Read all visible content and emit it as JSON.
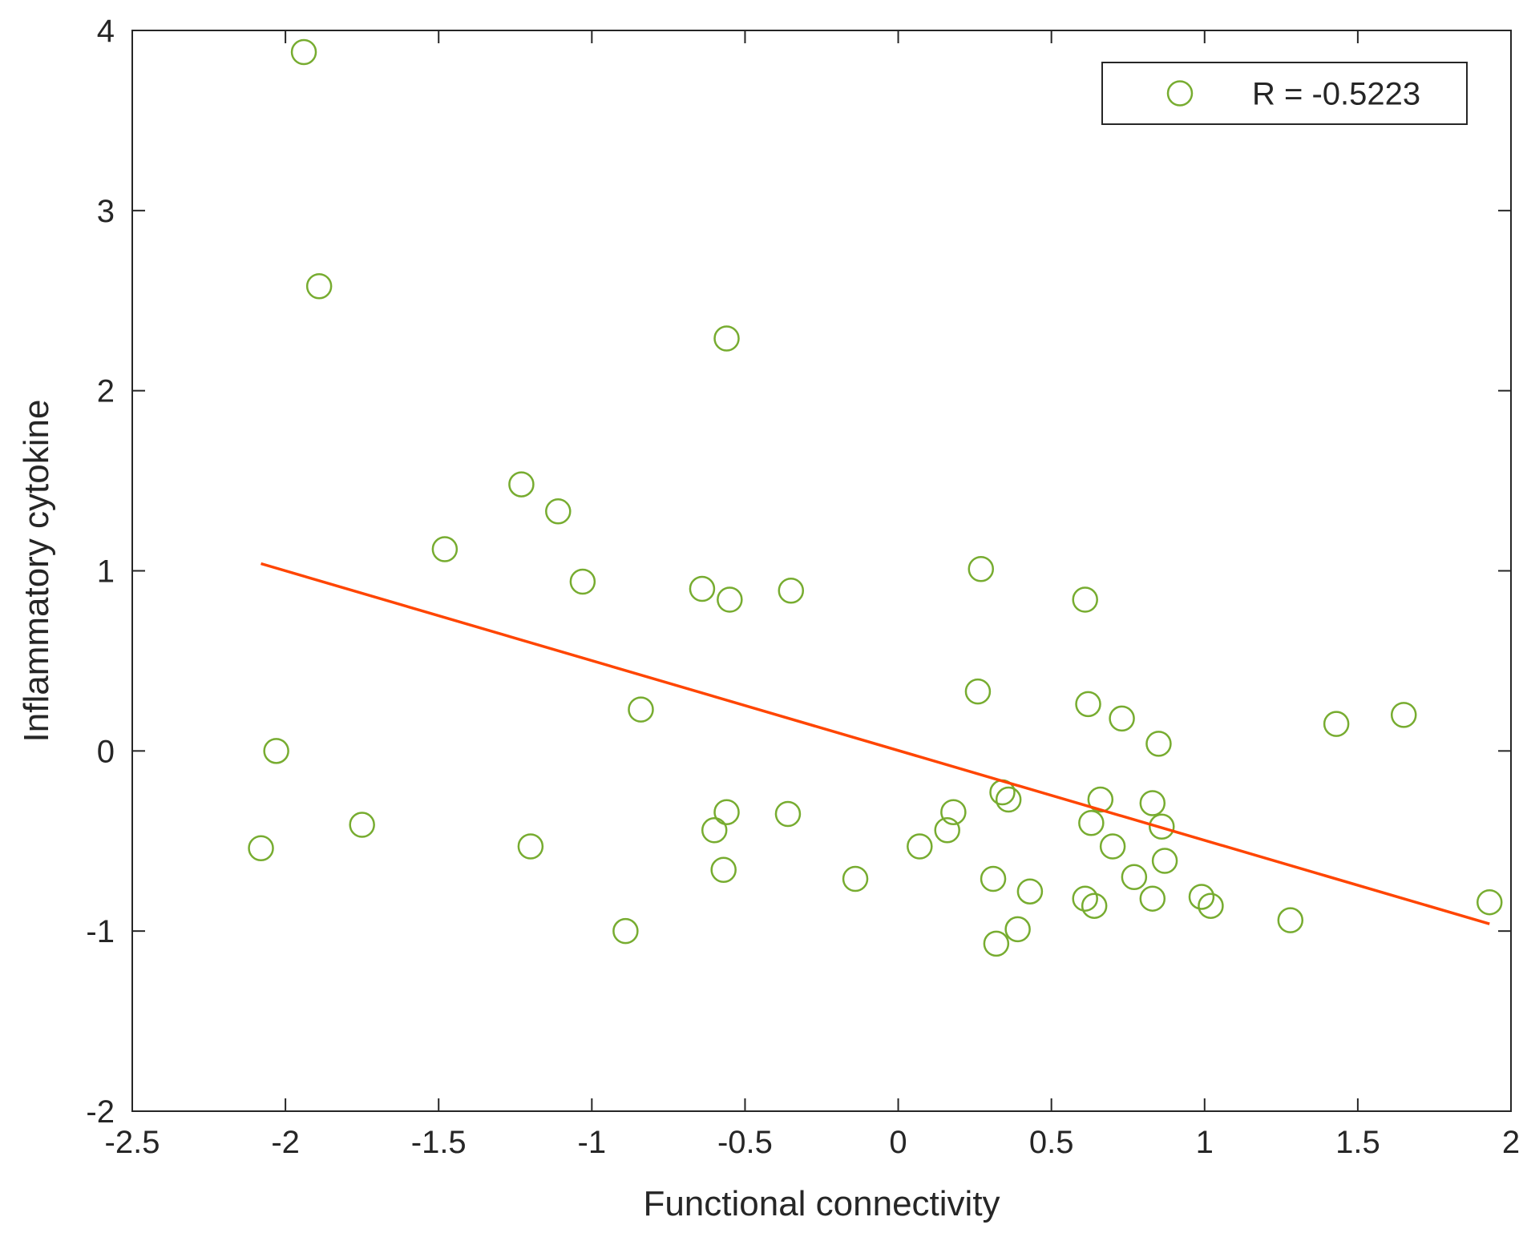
{
  "chart_data": {
    "type": "scatter",
    "title": "",
    "xlabel": "Functional connectivity",
    "ylabel": "Inflammatory cytokine",
    "xlim": [
      -2.5,
      2
    ],
    "ylim": [
      -2,
      4
    ],
    "x_ticks": [
      -2.5,
      -2,
      -1.5,
      -1,
      -0.5,
      0,
      0.5,
      1,
      1.5,
      2
    ],
    "x_tick_labels": [
      "-2.5",
      "-2",
      "-1.5",
      "-1",
      "-0.5",
      "0",
      "0.5",
      "1",
      "1.5",
      "2"
    ],
    "y_ticks": [
      -2,
      -1,
      0,
      1,
      2,
      3,
      4
    ],
    "y_tick_labels": [
      "-2",
      "-1",
      "0",
      "1",
      "2",
      "3",
      "4"
    ],
    "grid": false,
    "legend": {
      "placement": "top-right",
      "entries": [
        {
          "label": "R = -0.5223",
          "marker": "circle-open",
          "color": "#77AC30"
        }
      ]
    },
    "series": [
      {
        "marker": "circle-open",
        "color": "#77AC30",
        "points": [
          [
            -1.94,
            3.88
          ],
          [
            -1.89,
            2.58
          ],
          [
            -0.56,
            2.29
          ],
          [
            -1.23,
            1.48
          ],
          [
            -1.11,
            1.33
          ],
          [
            -1.48,
            1.12
          ],
          [
            -1.03,
            0.94
          ],
          [
            -0.64,
            0.9
          ],
          [
            -0.55,
            0.84
          ],
          [
            -0.35,
            0.89
          ],
          [
            0.27,
            1.01
          ],
          [
            0.61,
            0.84
          ],
          [
            -0.84,
            0.23
          ],
          [
            0.26,
            0.33
          ],
          [
            0.62,
            0.26
          ],
          [
            0.73,
            0.18
          ],
          [
            0.85,
            0.04
          ],
          [
            1.43,
            0.15
          ],
          [
            1.65,
            0.2
          ],
          [
            -2.03,
            0.0
          ],
          [
            -2.08,
            -0.54
          ],
          [
            -1.75,
            -0.41
          ],
          [
            -1.2,
            -0.53
          ],
          [
            -0.6,
            -0.44
          ],
          [
            -0.56,
            -0.34
          ],
          [
            -0.57,
            -0.66
          ],
          [
            -0.36,
            -0.35
          ],
          [
            -0.89,
            -1.0
          ],
          [
            -0.14,
            -0.71
          ],
          [
            0.07,
            -0.53
          ],
          [
            0.16,
            -0.44
          ],
          [
            0.18,
            -0.34
          ],
          [
            0.34,
            -0.23
          ],
          [
            0.36,
            -0.27
          ],
          [
            0.31,
            -0.71
          ],
          [
            0.43,
            -0.78
          ],
          [
            0.39,
            -0.99
          ],
          [
            0.32,
            -1.07
          ],
          [
            0.61,
            -0.82
          ],
          [
            0.64,
            -0.86
          ],
          [
            0.63,
            -0.4
          ],
          [
            0.66,
            -0.27
          ],
          [
            0.7,
            -0.53
          ],
          [
            0.77,
            -0.7
          ],
          [
            0.83,
            -0.82
          ],
          [
            0.83,
            -0.29
          ],
          [
            0.86,
            -0.42
          ],
          [
            0.87,
            -0.61
          ],
          [
            0.99,
            -0.81
          ],
          [
            1.02,
            -0.86
          ],
          [
            1.28,
            -0.94
          ],
          [
            1.93,
            -0.84
          ]
        ]
      }
    ],
    "fit_line": {
      "color": "#FF4500",
      "points": [
        [
          -2.08,
          1.04
        ],
        [
          1.93,
          -0.96
        ]
      ]
    }
  }
}
